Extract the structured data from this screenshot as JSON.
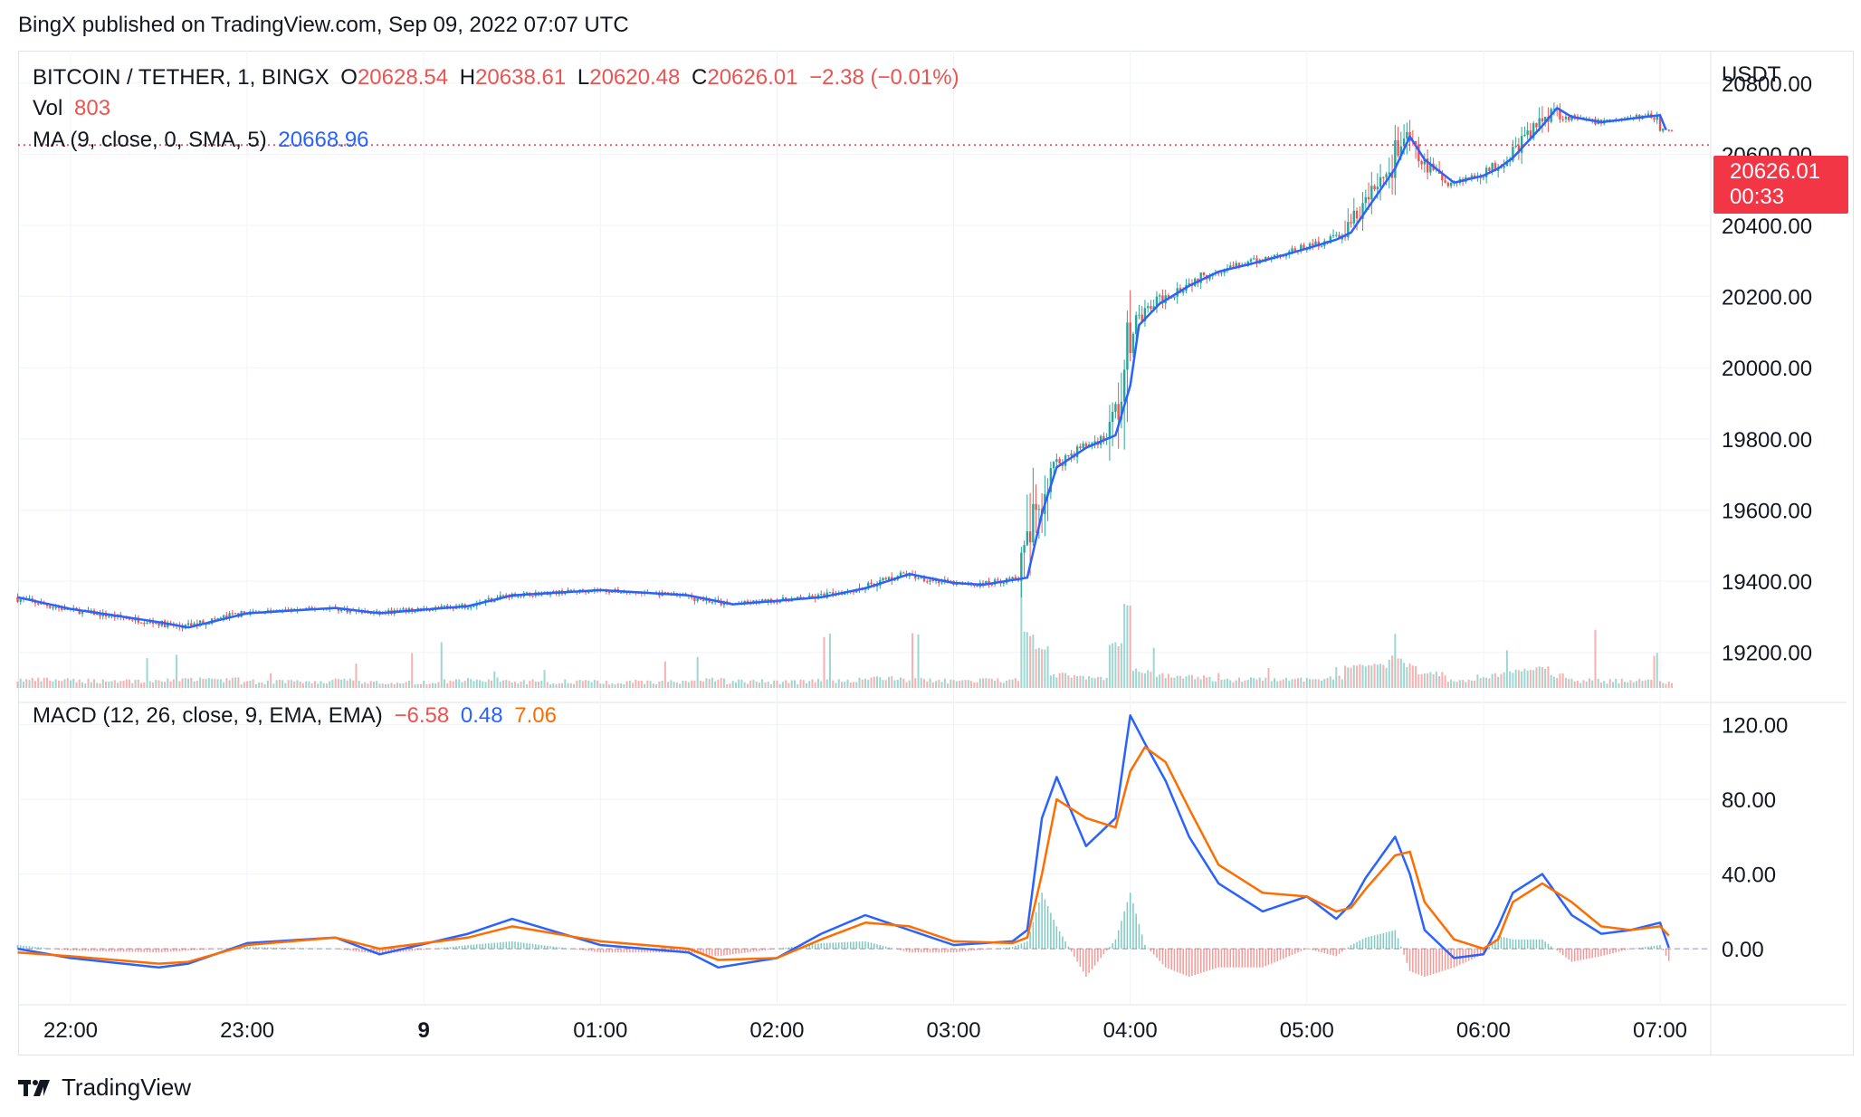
{
  "header": {
    "published_by": "BingX published on TradingView.com, Sep 09, 2022 07:07 UTC"
  },
  "legend": {
    "symbol": "BITCOIN / TETHER, 1, BINGX",
    "o_label": "O",
    "o_value": "20628.54",
    "h_label": "H",
    "h_value": "20638.61",
    "l_label": "L",
    "l_value": "20620.48",
    "c_label": "C",
    "c_value": "20626.01",
    "change": "−2.38 (−0.01%)",
    "vol_label": "Vol",
    "vol_value": "803",
    "ma_label": "MA (9, close, 0, SMA, 5)",
    "ma_value": "20668.96",
    "macd_label": "MACD (12, 26, close, 9, EMA, EMA)",
    "macd_hist": "−6.58",
    "macd_value": "0.48",
    "macd_signal": "7.06"
  },
  "price_scale": {
    "currency": "USDT",
    "ticks": [
      "20800.00",
      "20600.00",
      "20400.00",
      "20200.00",
      "20000.00",
      "19800.00",
      "19600.00",
      "19400.00",
      "19200.00"
    ],
    "last_price": "20626.01",
    "countdown": "00:33"
  },
  "macd_scale": {
    "ticks": [
      "120.00",
      "80.00",
      "40.00",
      "0.00"
    ]
  },
  "time_axis": {
    "ticks": [
      "22:00",
      "23:00",
      "9",
      "01:00",
      "02:00",
      "03:00",
      "04:00",
      "05:00",
      "06:00",
      "07:00"
    ]
  },
  "footer": {
    "brand": "TradingView"
  },
  "colors": {
    "up": "#26a69a",
    "down": "#ef5350",
    "ma": "#2962ff",
    "macd": "#2962ff",
    "signal": "#ff6d00",
    "last_price": "#f23645",
    "grid": "#f0f3fa",
    "text": "#131722"
  },
  "chart_data": [
    {
      "type": "line",
      "title": "",
      "series": [
        {
          "name": "MA (9, close, 0, SMA, 5)",
          "x": [
            "21:42",
            "22:00",
            "22:30",
            "22:40",
            "23:00",
            "23:30",
            "23:45",
            "00:00",
            "00:15",
            "00:30",
            "01:00",
            "01:30",
            "01:45",
            "02:00",
            "02:15",
            "02:30",
            "02:45",
            "03:00",
            "03:10",
            "03:25",
            "03:30",
            "03:35",
            "03:45",
            "03:55",
            "04:00",
            "04:03",
            "04:10",
            "04:20",
            "04:30",
            "04:45",
            "05:00",
            "05:10",
            "05:15",
            "05:20",
            "05:30",
            "05:35",
            "05:40",
            "05:50",
            "06:00",
            "06:05",
            "06:10",
            "06:20",
            "06:25",
            "06:30",
            "06:40",
            "06:50",
            "07:00",
            "07:02"
          ],
          "values": [
            19355,
            19322,
            19285,
            19270,
            19310,
            19325,
            19310,
            19320,
            19330,
            19360,
            19375,
            19360,
            19335,
            19345,
            19355,
            19380,
            19420,
            19395,
            19390,
            19410,
            19590,
            19720,
            19775,
            19810,
            19950,
            20120,
            20180,
            20230,
            20270,
            20300,
            20335,
            20360,
            20380,
            20440,
            20560,
            20650,
            20585,
            20520,
            20540,
            20560,
            20590,
            20680,
            20730,
            20705,
            20690,
            20700,
            20710,
            20669
          ]
        }
      ],
      "ylim": [
        19100,
        20830
      ],
      "ylabel": "USDT",
      "last_price": 20626.01
    },
    {
      "type": "line",
      "title": "",
      "series": [
        {
          "name": "MACD",
          "x": [
            "21:42",
            "22:00",
            "22:30",
            "22:40",
            "23:00",
            "23:30",
            "23:45",
            "00:15",
            "00:30",
            "01:00",
            "01:30",
            "01:40",
            "02:00",
            "02:15",
            "02:30",
            "02:45",
            "03:00",
            "03:20",
            "03:25",
            "03:30",
            "03:35",
            "03:45",
            "03:55",
            "04:00",
            "04:05",
            "04:12",
            "04:20",
            "04:30",
            "04:45",
            "05:00",
            "05:10",
            "05:15",
            "05:20",
            "05:30",
            "05:35",
            "05:40",
            "05:50",
            "06:00",
            "06:05",
            "06:10",
            "06:20",
            "06:30",
            "06:40",
            "06:50",
            "07:00",
            "07:03"
          ],
          "values": [
            0,
            -5,
            -10,
            -8,
            3,
            6,
            -3,
            8,
            16,
            2,
            -2,
            -10,
            -5,
            8,
            18,
            10,
            2,
            4,
            10,
            70,
            92,
            55,
            70,
            125,
            110,
            90,
            60,
            35,
            20,
            28,
            16,
            24,
            38,
            60,
            40,
            10,
            -5,
            -3,
            12,
            30,
            40,
            18,
            8,
            10,
            14,
            0.48
          ]
        },
        {
          "name": "Signal",
          "x": [
            "21:42",
            "22:00",
            "22:30",
            "22:40",
            "23:00",
            "23:30",
            "23:45",
            "00:15",
            "00:30",
            "01:00",
            "01:30",
            "01:40",
            "02:00",
            "02:15",
            "02:30",
            "02:45",
            "03:00",
            "03:20",
            "03:25",
            "03:30",
            "03:35",
            "03:45",
            "03:55",
            "04:00",
            "04:05",
            "04:12",
            "04:20",
            "04:30",
            "04:45",
            "05:00",
            "05:10",
            "05:15",
            "05:20",
            "05:30",
            "05:35",
            "05:40",
            "05:50",
            "06:00",
            "06:05",
            "06:10",
            "06:20",
            "06:30",
            "06:40",
            "06:50",
            "07:00",
            "07:03"
          ],
          "values": [
            -2,
            -4,
            -8,
            -7,
            2,
            6,
            0,
            6,
            12,
            4,
            0,
            -6,
            -5,
            5,
            14,
            12,
            4,
            3,
            6,
            40,
            80,
            70,
            65,
            95,
            108,
            100,
            75,
            45,
            30,
            28,
            20,
            22,
            32,
            50,
            52,
            25,
            5,
            0,
            5,
            25,
            35,
            25,
            12,
            10,
            12,
            7.06
          ]
        }
      ],
      "ylim": [
        -30,
        130
      ]
    }
  ]
}
